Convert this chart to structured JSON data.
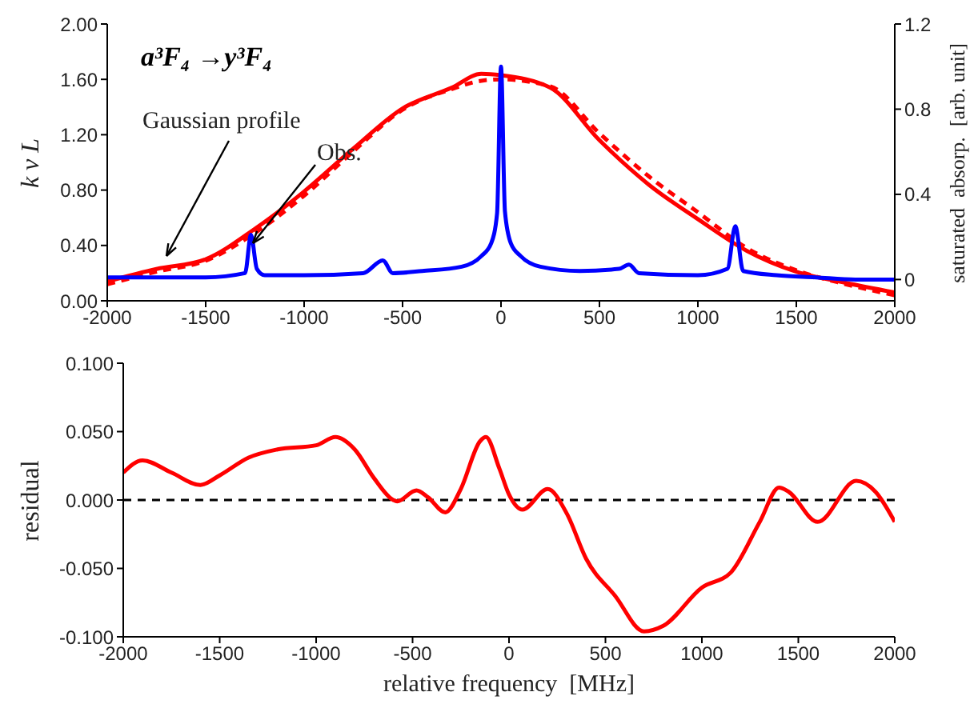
{
  "chart_data": [
    {
      "type": "line",
      "title": "a³F₄ →y³F₄",
      "ylabel": "k ν L",
      "y2label": "saturated  absorp.  [arb. unit]",
      "xlim": [
        -2000,
        2000
      ],
      "xticks": [
        -2000,
        -1500,
        -1000,
        -500,
        0,
        500,
        1000,
        1500,
        2000
      ],
      "ylim": [
        0,
        2
      ],
      "yticks": [
        {
          "value": 0,
          "label": "0.00"
        },
        {
          "value": 0.4,
          "label": "0.40"
        },
        {
          "value": 0.8,
          "label": "0.80"
        },
        {
          "value": 1.2,
          "label": "1.20"
        },
        {
          "value": 1.6,
          "label": "1.60"
        },
        {
          "value": 2,
          "label": "2.00"
        }
      ],
      "y2lim": [
        -0.1,
        1.2
      ],
      "y2ticks": [
        0,
        0.4,
        0.8,
        1.2
      ],
      "series": [
        {
          "name": "Obs.",
          "color": "#ff0000",
          "line_style": "solid",
          "x": [
            -2000,
            -1750,
            -1500,
            -1250,
            -1000,
            -750,
            -500,
            -250,
            -100,
            0,
            250,
            500,
            750,
            1000,
            1250,
            1500,
            1750,
            2000
          ],
          "values": [
            0.14,
            0.23,
            0.3,
            0.52,
            0.79,
            1.1,
            1.39,
            1.54,
            1.64,
            1.63,
            1.54,
            1.16,
            0.84,
            0.59,
            0.36,
            0.21,
            0.13,
            0.06
          ]
        },
        {
          "name": "Gaussian profile",
          "color": "#ff0000",
          "line_style": "dashed",
          "x": [
            -2000,
            -1750,
            -1500,
            -1250,
            -1000,
            -750,
            -500,
            -250,
            -100,
            0,
            250,
            500,
            750,
            1000,
            1250,
            1500,
            1750,
            2000
          ],
          "values": [
            0.12,
            0.21,
            0.29,
            0.49,
            0.76,
            1.08,
            1.38,
            1.53,
            1.59,
            1.6,
            1.55,
            1.21,
            0.9,
            0.64,
            0.38,
            0.22,
            0.12,
            0.04
          ]
        },
        {
          "color": "#0000ff",
          "axis": "y2",
          "line_style": "solid",
          "x": [
            -2000,
            -1500,
            -1300,
            -1270,
            -1240,
            -1200,
            -1000,
            -700,
            -600,
            -550,
            -400,
            -200,
            -100,
            -50,
            -20,
            0,
            20,
            50,
            100,
            200,
            400,
            600,
            650,
            700,
            1000,
            1150,
            1190,
            1230,
            1400,
            1600,
            1800,
            2000
          ],
          "values": [
            0.01,
            0.01,
            0.03,
            0.21,
            0.05,
            0.02,
            0.02,
            0.03,
            0.09,
            0.03,
            0.04,
            0.06,
            0.11,
            0.17,
            0.31,
            1.0,
            0.32,
            0.17,
            0.11,
            0.06,
            0.04,
            0.05,
            0.07,
            0.03,
            0.02,
            0.05,
            0.25,
            0.04,
            0.02,
            0.01,
            0.0,
            0.0
          ]
        }
      ]
    },
    {
      "type": "line",
      "xlabel": "relative frequency  [MHz]",
      "ylabel": "residual",
      "xlim": [
        -2000,
        2000
      ],
      "xticks": [
        -2000,
        -1500,
        -1000,
        -500,
        0,
        500,
        1000,
        1500,
        2000
      ],
      "ylim": [
        -0.1,
        0.1
      ],
      "yticks": [
        {
          "value": -0.1,
          "label": "-0.100"
        },
        {
          "value": -0.05,
          "label": "-0.050"
        },
        {
          "value": 0,
          "label": "0.000"
        },
        {
          "value": 0.05,
          "label": "0.050"
        },
        {
          "value": 0.1,
          "label": "0.100"
        }
      ],
      "ref_lines": [
        {
          "axis": "y",
          "value": 0,
          "color": "#000000",
          "line_style": "dashed"
        }
      ],
      "series": [
        {
          "color": "#ff0000",
          "line_style": "solid",
          "x": [
            -2000,
            -1900,
            -1750,
            -1600,
            -1500,
            -1350,
            -1200,
            -1000,
            -900,
            -800,
            -700,
            -600,
            -580,
            -480,
            -420,
            -330,
            -250,
            -150,
            -120,
            -50,
            0,
            70,
            200,
            300,
            400,
            550,
            700,
            800,
            1000,
            1150,
            1300,
            1400,
            1450,
            1600,
            1800,
            1900,
            2000
          ],
          "values": [
            0.02,
            0.029,
            0.02,
            0.011,
            0.018,
            0.031,
            0.037,
            0.04,
            0.046,
            0.037,
            0.016,
            0.0,
            -0.001,
            0.007,
            0.002,
            -0.009,
            0.008,
            0.043,
            0.046,
            0.023,
            0.004,
            -0.007,
            0.008,
            -0.01,
            -0.043,
            -0.07,
            -0.096,
            -0.092,
            -0.064,
            -0.053,
            -0.016,
            0.009,
            0.006,
            -0.016,
            0.014,
            0.006,
            -0.016
          ]
        }
      ]
    }
  ]
}
